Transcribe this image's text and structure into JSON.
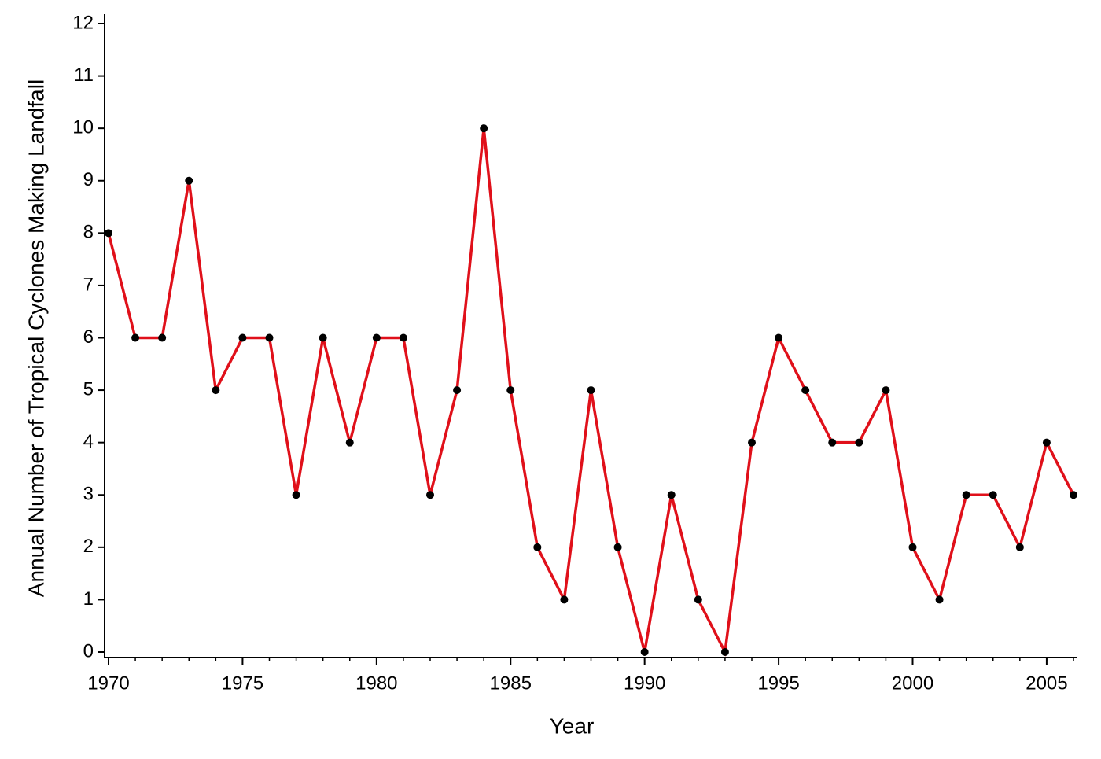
{
  "chart_data": {
    "type": "line",
    "x_label": "Year",
    "y_label": "Annual Number of Tropical Cyclones Making Landfall",
    "x": [
      1970,
      1971,
      1972,
      1973,
      1974,
      1975,
      1976,
      1977,
      1978,
      1979,
      1980,
      1981,
      1982,
      1983,
      1984,
      1985,
      1986,
      1987,
      1988,
      1989,
      1990,
      1991,
      1992,
      1993,
      1994,
      1995,
      1996,
      1997,
      1998,
      1999,
      2000,
      2001,
      2002,
      2003,
      2004,
      2005,
      2006
    ],
    "series": [
      {
        "color": "#e0101a",
        "values": [
          8,
          6,
          6,
          9,
          5,
          6,
          6,
          3,
          6,
          4,
          6,
          6,
          3,
          5,
          10,
          5,
          2,
          1,
          5,
          2,
          0,
          3,
          1,
          0,
          4,
          6,
          5,
          4,
          4,
          5,
          2,
          1,
          3,
          3,
          2,
          4,
          3
        ]
      }
    ],
    "marker_color": "#000000",
    "xlim": [
      1970,
      2006
    ],
    "xticks": [
      1970,
      1975,
      1980,
      1985,
      1990,
      1995,
      2000,
      2005
    ],
    "ylim": [
      0,
      12
    ],
    "yticks": [
      0,
      1,
      2,
      3,
      4,
      5,
      6,
      7,
      8,
      9,
      10,
      11,
      12
    ],
    "grid": false
  }
}
